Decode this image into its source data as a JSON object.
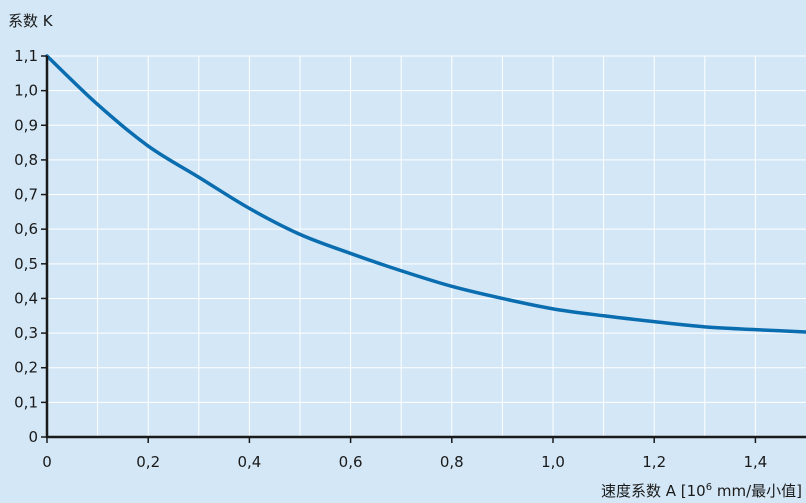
{
  "chart_data": {
    "type": "line",
    "title": "",
    "ylabel": "系数 K",
    "xlabel": {
      "prefix": "速度系数 A [10",
      "superscript": "6",
      "suffix": " mm/最小值]"
    },
    "xlim": [
      0,
      1.5
    ],
    "ylim": [
      0,
      1.1
    ],
    "x_ticks": [
      {
        "value": 0,
        "label": "0"
      },
      {
        "value": 0.2,
        "label": "0,2"
      },
      {
        "value": 0.4,
        "label": "0,4"
      },
      {
        "value": 0.6,
        "label": "0,6"
      },
      {
        "value": 0.8,
        "label": "0,8"
      },
      {
        "value": 1.0,
        "label": "1,0"
      },
      {
        "value": 1.2,
        "label": "1,2"
      },
      {
        "value": 1.4,
        "label": "1,4"
      }
    ],
    "x_grid": [
      0.1,
      0.2,
      0.3,
      0.4,
      0.5,
      0.6,
      0.7,
      0.8,
      0.9,
      1.0,
      1.1,
      1.2,
      1.3,
      1.4
    ],
    "y_ticks": [
      {
        "value": 0,
        "label": "0"
      },
      {
        "value": 0.1,
        "label": "0,1"
      },
      {
        "value": 0.2,
        "label": "0,2"
      },
      {
        "value": 0.3,
        "label": "0,3"
      },
      {
        "value": 0.4,
        "label": "0,4"
      },
      {
        "value": 0.5,
        "label": "0,5"
      },
      {
        "value": 0.6,
        "label": "0,6"
      },
      {
        "value": 0.7,
        "label": "0,7"
      },
      {
        "value": 0.8,
        "label": "0,8"
      },
      {
        "value": 0.9,
        "label": "0,9"
      },
      {
        "value": 1.0,
        "label": "1,0"
      },
      {
        "value": 1.1,
        "label": "1,1"
      }
    ],
    "grid": true,
    "series": [
      {
        "color": "#0a6db0",
        "x": [
          0,
          0.1,
          0.2,
          0.3,
          0.4,
          0.5,
          0.6,
          0.7,
          0.8,
          0.9,
          1.0,
          1.1,
          1.2,
          1.3,
          1.4,
          1.5
        ],
        "y": [
          1.1,
          0.96,
          0.84,
          0.75,
          0.66,
          0.585,
          0.53,
          0.48,
          0.435,
          0.4,
          0.37,
          0.35,
          0.333,
          0.318,
          0.31,
          0.303
        ]
      }
    ]
  }
}
